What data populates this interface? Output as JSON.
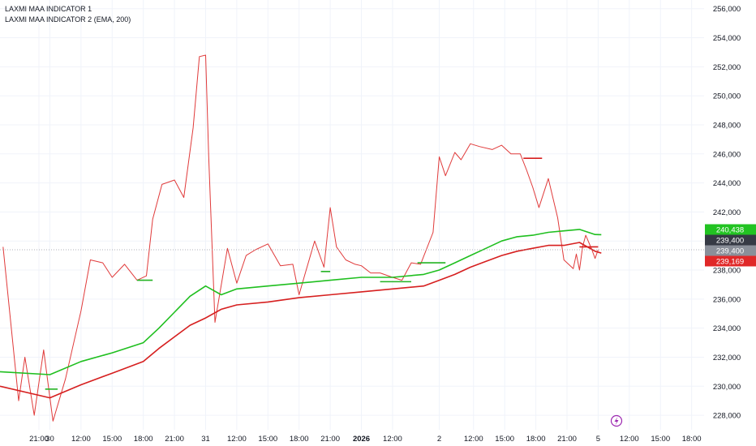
{
  "legend": {
    "line1": "LAXMI MAA INDICATOR 1",
    "line2": "LAXMI MAA INDICATOR 2 (EMA, 200)"
  },
  "price_tags": [
    {
      "label": "240,438",
      "value": 240438,
      "color": "#22c322"
    },
    {
      "label": "239,400",
      "value": 239400,
      "color": "#363a45"
    },
    {
      "label": "239,400",
      "value": 239400,
      "color": "#8a8f99"
    },
    {
      "label": "239,169",
      "value": 239169,
      "color": "#e02828"
    }
  ],
  "current_price": 239400,
  "chart_data": {
    "type": "line",
    "title": "",
    "xlabel": "",
    "ylabel": "",
    "ylim": [
      227000,
      256600
    ],
    "y_ticks": [
      "256,000",
      "254,000",
      "252,000",
      "250,000",
      "248,000",
      "246,000",
      "244,000",
      "242,000",
      "240,000",
      "238,000",
      "236,000",
      "234,000",
      "232,000",
      "230,000",
      "228,000"
    ],
    "x_ticks": [
      {
        "label": "21:00",
        "x": 0.65
      },
      {
        "label": "30",
        "x": 1.0
      },
      {
        "label": "12:00",
        "x": 2.0
      },
      {
        "label": "15:00",
        "x": 3.0
      },
      {
        "label": "18:00",
        "x": 4.0
      },
      {
        "label": "21:00",
        "x": 5.0
      },
      {
        "label": "31",
        "x": 6.0
      },
      {
        "label": "12:00",
        "x": 7.0
      },
      {
        "label": "15:00",
        "x": 8.0
      },
      {
        "label": "18:00",
        "x": 9.0
      },
      {
        "label": "21:00",
        "x": 10.0
      },
      {
        "label": "2026",
        "x": 11.0,
        "bold": true
      },
      {
        "label": "12:00",
        "x": 12.0
      },
      {
        "label": "2",
        "x": 13.5
      },
      {
        "label": "12:00",
        "x": 14.6
      },
      {
        "label": "15:00",
        "x": 15.6
      },
      {
        "label": "18:00",
        "x": 16.6
      },
      {
        "label": "21:00",
        "x": 17.6
      },
      {
        "label": "5",
        "x": 18.6
      },
      {
        "label": "12:00",
        "x": 19.6
      },
      {
        "label": "15:00",
        "x": 20.6
      },
      {
        "label": "18:00",
        "x": 21.6
      }
    ],
    "xlim": [
      -0.6,
      22.0
    ],
    "grid": true,
    "series": [
      {
        "color": "#e03a3a",
        "x": [
          -0.5,
          0.0,
          0.2,
          0.5,
          0.8,
          1.1,
          1.5,
          2.0,
          2.3,
          2.7,
          3.0,
          3.4,
          3.8,
          4.1,
          4.3,
          4.6,
          5.0,
          5.3,
          5.6,
          5.8,
          6.0,
          6.1,
          6.3,
          6.7,
          7.0,
          7.3,
          7.6,
          8.0,
          8.4,
          8.8,
          9.0,
          9.2,
          9.5,
          9.8,
          10.0,
          10.2,
          10.5,
          10.8,
          11.0,
          11.3,
          11.6,
          12.0,
          12.3,
          12.6,
          12.9,
          13.3,
          13.5,
          13.7,
          14.0,
          14.2,
          14.5,
          14.8,
          15.2,
          15.5,
          15.8,
          16.1,
          16.3,
          16.5,
          16.7,
          17.0,
          17.3,
          17.5,
          17.8,
          17.9,
          18.0,
          18.1,
          18.2,
          18.4,
          18.5,
          18.6
        ],
        "values": [
          239600,
          229000,
          232000,
          228000,
          232500,
          227600,
          230500,
          235200,
          238700,
          238500,
          237500,
          238400,
          237300,
          237600,
          241500,
          243900,
          244200,
          243000,
          247800,
          252700,
          252800,
          245800,
          234400,
          239500,
          237100,
          239000,
          239400,
          239800,
          238300,
          238400,
          236300,
          237800,
          240000,
          238200,
          242300,
          239600,
          238700,
          238400,
          238300,
          237800,
          237800,
          237500,
          237300,
          238500,
          238400,
          240600,
          245800,
          244500,
          246100,
          245600,
          246700,
          246500,
          246300,
          246600,
          246000,
          246000,
          244900,
          243700,
          242300,
          244300,
          241600,
          238700,
          238100,
          239100,
          238000,
          239600,
          240400,
          239400,
          238800,
          239400
        ]
      },
      {
        "color": "#1fbf1f",
        "x": [
          -0.6,
          1.0,
          2.0,
          3.0,
          4.0,
          4.5,
          5.0,
          5.5,
          6.0,
          6.5,
          7.0,
          8.0,
          9.0,
          10.0,
          11.0,
          12.0,
          13.0,
          13.5,
          14.0,
          14.5,
          15.0,
          15.5,
          16.0,
          16.5,
          17.0,
          17.5,
          18.0,
          18.5,
          18.7
        ],
        "values": [
          231000,
          230800,
          231700,
          232300,
          233000,
          234000,
          235100,
          236200,
          236900,
          236300,
          236700,
          236900,
          237100,
          237300,
          237500,
          237500,
          237700,
          238000,
          238500,
          239000,
          239500,
          240000,
          240300,
          240400,
          240600,
          240700,
          240800,
          240450,
          240438
        ]
      },
      {
        "color": "#d61f1f",
        "x": [
          -0.6,
          1.0,
          2.0,
          3.0,
          4.0,
          4.5,
          5.0,
          5.5,
          6.0,
          6.5,
          7.0,
          8.0,
          9.0,
          10.0,
          11.0,
          12.0,
          13.0,
          13.5,
          14.0,
          14.5,
          15.0,
          15.5,
          16.0,
          16.5,
          17.0,
          17.5,
          18.0,
          18.5,
          18.7
        ],
        "values": [
          230000,
          229200,
          230100,
          230900,
          231700,
          232600,
          233400,
          234200,
          234700,
          235300,
          235600,
          235800,
          236100,
          236300,
          236500,
          236700,
          236900,
          237300,
          237700,
          238200,
          238600,
          239000,
          239300,
          239500,
          239700,
          239700,
          239900,
          239300,
          239169
        ]
      }
    ],
    "step_levels": [
      {
        "color": "#22b222",
        "x": [
          3.8,
          4.3
        ],
        "value": 237300
      },
      {
        "color": "#22b222",
        "x": [
          9.7,
          10.0
        ],
        "value": 237900
      },
      {
        "color": "#22b222",
        "x": [
          11.6,
          12.6
        ],
        "value": 237200
      },
      {
        "color": "#22b222",
        "x": [
          12.8,
          13.7
        ],
        "value": 238500
      },
      {
        "color": "#d61f1f",
        "x": [
          16.2,
          16.8
        ],
        "value": 245700
      },
      {
        "color": "#d61f1f",
        "x": [
          18.0,
          18.6
        ],
        "value": 239600
      },
      {
        "color": "#22b222",
        "x": [
          0.85,
          1.25
        ],
        "value": 229800
      }
    ]
  },
  "icons": {
    "flash": "lightning-icon"
  }
}
